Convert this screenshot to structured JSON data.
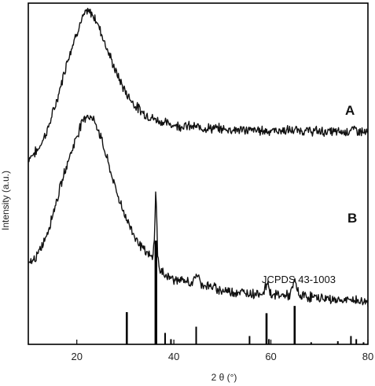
{
  "chart_data": {
    "type": "line",
    "title": "",
    "xlabel": "2 θ (°)",
    "ylabel": "Intensity (a.u.)",
    "xlim": [
      10,
      80
    ],
    "x_ticks": [
      20,
      40,
      60,
      80
    ],
    "y_ticks_shown": false,
    "grid": false,
    "series": [
      {
        "name": "A",
        "points": [
          [
            10,
            0.545
          ],
          [
            12,
            0.57
          ],
          [
            14,
            0.63
          ],
          [
            16,
            0.72
          ],
          [
            18,
            0.83
          ],
          [
            20,
            0.915
          ],
          [
            21,
            0.95
          ],
          [
            22,
            0.975
          ],
          [
            23,
            0.97
          ],
          [
            24,
            0.95
          ],
          [
            25,
            0.915
          ],
          [
            26,
            0.875
          ],
          [
            28,
            0.8
          ],
          [
            30,
            0.74
          ],
          [
            32,
            0.7
          ],
          [
            34,
            0.675
          ],
          [
            36,
            0.66
          ],
          [
            38,
            0.65
          ],
          [
            40,
            0.643
          ],
          [
            45,
            0.636
          ],
          [
            50,
            0.631
          ],
          [
            55,
            0.628
          ],
          [
            60,
            0.626
          ],
          [
            65,
            0.627
          ],
          [
            70,
            0.624
          ],
          [
            75,
            0.622
          ],
          [
            77,
            0.63
          ],
          [
            80,
            0.618
          ]
        ]
      },
      {
        "name": "B",
        "points": [
          [
            10,
            0.232
          ],
          [
            12,
            0.262
          ],
          [
            14,
            0.33
          ],
          [
            16,
            0.43
          ],
          [
            18,
            0.53
          ],
          [
            20,
            0.61
          ],
          [
            21,
            0.65
          ],
          [
            22,
            0.672
          ],
          [
            23,
            0.665
          ],
          [
            24,
            0.645
          ],
          [
            25,
            0.605
          ],
          [
            26,
            0.555
          ],
          [
            28,
            0.455
          ],
          [
            30,
            0.375
          ],
          [
            32,
            0.315
          ],
          [
            34,
            0.272
          ],
          [
            35.5,
            0.252
          ],
          [
            36,
            0.3
          ],
          [
            36.3,
            0.48
          ],
          [
            36.6,
            0.28
          ],
          [
            37,
            0.215
          ],
          [
            40,
            0.19
          ],
          [
            44,
            0.18
          ],
          [
            44.8,
            0.21
          ],
          [
            45.5,
            0.178
          ],
          [
            50,
            0.158
          ],
          [
            55,
            0.15
          ],
          [
            58.5,
            0.15
          ],
          [
            59.3,
            0.185
          ],
          [
            60,
            0.146
          ],
          [
            64,
            0.143
          ],
          [
            64.9,
            0.188
          ],
          [
            65.8,
            0.143
          ],
          [
            70,
            0.136
          ],
          [
            75,
            0.128
          ],
          [
            77,
            0.13
          ],
          [
            80,
            0.122
          ]
        ]
      }
    ],
    "reference": {
      "name": "JCPDS 43-1003",
      "sticks": [
        {
          "x": 30.3,
          "h": 0.31
        },
        {
          "x": 36.3,
          "h": 1.0
        },
        {
          "x": 38.2,
          "h": 0.11
        },
        {
          "x": 39.4,
          "h": 0.05
        },
        {
          "x": 44.6,
          "h": 0.17
        },
        {
          "x": 55.6,
          "h": 0.08
        },
        {
          "x": 59.1,
          "h": 0.3
        },
        {
          "x": 59.6,
          "h": 0.05
        },
        {
          "x": 64.9,
          "h": 0.37
        },
        {
          "x": 68.3,
          "h": 0.02
        },
        {
          "x": 73.8,
          "h": 0.03
        },
        {
          "x": 76.5,
          "h": 0.08
        },
        {
          "x": 77.6,
          "h": 0.05
        },
        {
          "x": 79.1,
          "h": 0.02
        }
      ]
    }
  }
}
